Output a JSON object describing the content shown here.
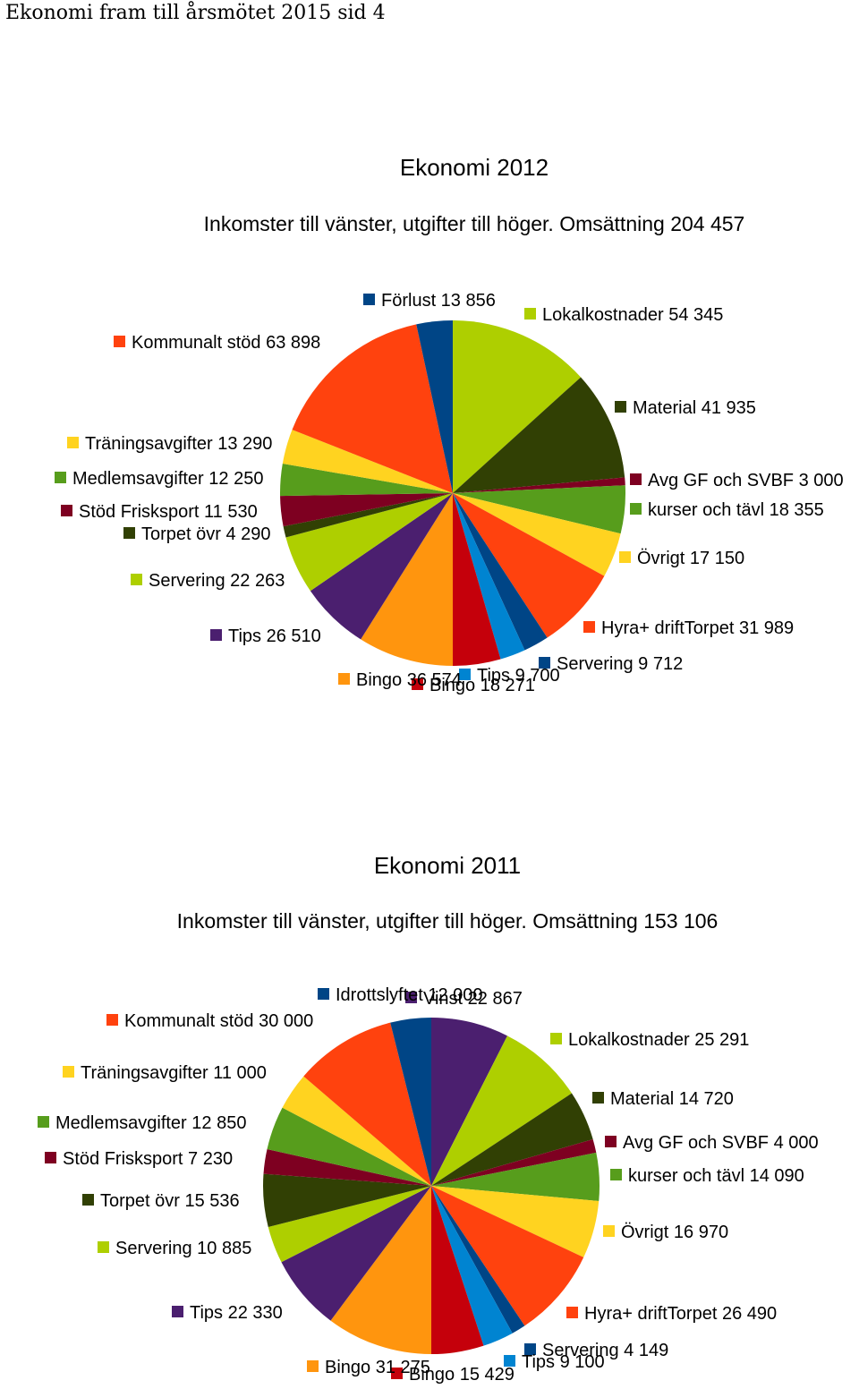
{
  "page": {
    "header": "Ekonomi fram till årsmötet 2015 sid 4"
  },
  "chart_data": [
    {
      "type": "pie",
      "title": "Ekonomi 2012",
      "subtitle": "Inkomster till vänster, utgifter till höger. Omsättning 204 457",
      "slices": [
        {
          "label": "Lokalkostnader 54 345",
          "value": 54345,
          "color": "#aecf00"
        },
        {
          "label": "Material 41 935",
          "value": 41935,
          "color": "#314004"
        },
        {
          "label": "Avg GF och SVBF 3 000",
          "value": 3000,
          "color": "#7e0021"
        },
        {
          "label": "kurser och tävl 18 355",
          "value": 18355,
          "color": "#579d1c"
        },
        {
          "label": "Övrigt 17 150",
          "value": 17150,
          "color": "#ffd320"
        },
        {
          "label": "Hyra+ driftTorpet 31 989",
          "value": 31989,
          "color": "#ff420e"
        },
        {
          "label": "Servering 9 712",
          "value": 9712,
          "color": "#004586"
        },
        {
          "label": "Tips 9 700",
          "value": 9700,
          "color": "#0084d1"
        },
        {
          "label": "Bingo 18 271",
          "value": 18271,
          "color": "#c5000b"
        },
        {
          "label": "Bingo 36 574",
          "value": 36574,
          "color": "#ff950e"
        },
        {
          "label": "Tips 26 510",
          "value": 26510,
          "color": "#4b1f6f"
        },
        {
          "label": "Servering 22 263",
          "value": 22263,
          "color": "#aecf00"
        },
        {
          "label": "Torpet övr 4 290",
          "value": 4290,
          "color": "#314004"
        },
        {
          "label": "Stöd Frisksport 11 530",
          "value": 11530,
          "color": "#7e0021"
        },
        {
          "label": "Medlemsavgifter 12 250",
          "value": 12250,
          "color": "#579d1c"
        },
        {
          "label": "Träningsavgifter 13 290",
          "value": 13290,
          "color": "#ffd320"
        },
        {
          "label": "Kommunalt stöd 63 898",
          "value": 63898,
          "color": "#ff420e"
        },
        {
          "label": "Förlust 13 856",
          "value": 13856,
          "color": "#004586"
        }
      ]
    },
    {
      "type": "pie",
      "title": "Ekonomi 2011",
      "subtitle": "Inkomster till vänster, utgifter till höger. Omsättning 153 106",
      "slices": [
        {
          "label": "Vinst 22 867",
          "value": 22867,
          "color": "#4b1f6f"
        },
        {
          "label": "Lokalkostnader 25 291",
          "value": 25291,
          "color": "#aecf00"
        },
        {
          "label": "Material 14 720",
          "value": 14720,
          "color": "#314004"
        },
        {
          "label": "Avg GF och SVBF 4 000",
          "value": 4000,
          "color": "#7e0021"
        },
        {
          "label": "kurser och tävl 14 090",
          "value": 14090,
          "color": "#579d1c"
        },
        {
          "label": "Övrigt 16 970",
          "value": 16970,
          "color": "#ffd320"
        },
        {
          "label": "Hyra+ driftTorpet 26 490",
          "value": 26490,
          "color": "#ff420e"
        },
        {
          "label": "Servering 4 149",
          "value": 4149,
          "color": "#004586"
        },
        {
          "label": "Tips 9 100",
          "value": 9100,
          "color": "#0084d1"
        },
        {
          "label": "Bingo 15 429",
          "value": 15429,
          "color": "#c5000b"
        },
        {
          "label": "Bingo 31 275",
          "value": 31275,
          "color": "#ff950e"
        },
        {
          "label": "Tips 22 330",
          "value": 22330,
          "color": "#4b1f6f"
        },
        {
          "label": "Servering 10 885",
          "value": 10885,
          "color": "#aecf00"
        },
        {
          "label": "Torpet övr 15 536",
          "value": 15536,
          "color": "#314004"
        },
        {
          "label": "Stöd Frisksport 7 230",
          "value": 7230,
          "color": "#7e0021"
        },
        {
          "label": "Medlemsavgifter 12 850",
          "value": 12850,
          "color": "#579d1c"
        },
        {
          "label": "Träningsavgifter 11 000",
          "value": 11000,
          "color": "#ffd320"
        },
        {
          "label": "Kommunalt stöd 30 000",
          "value": 30000,
          "color": "#ff420e"
        },
        {
          "label": "Idrottslyftet 12 000",
          "value": 12000,
          "color": "#004586"
        }
      ]
    }
  ]
}
